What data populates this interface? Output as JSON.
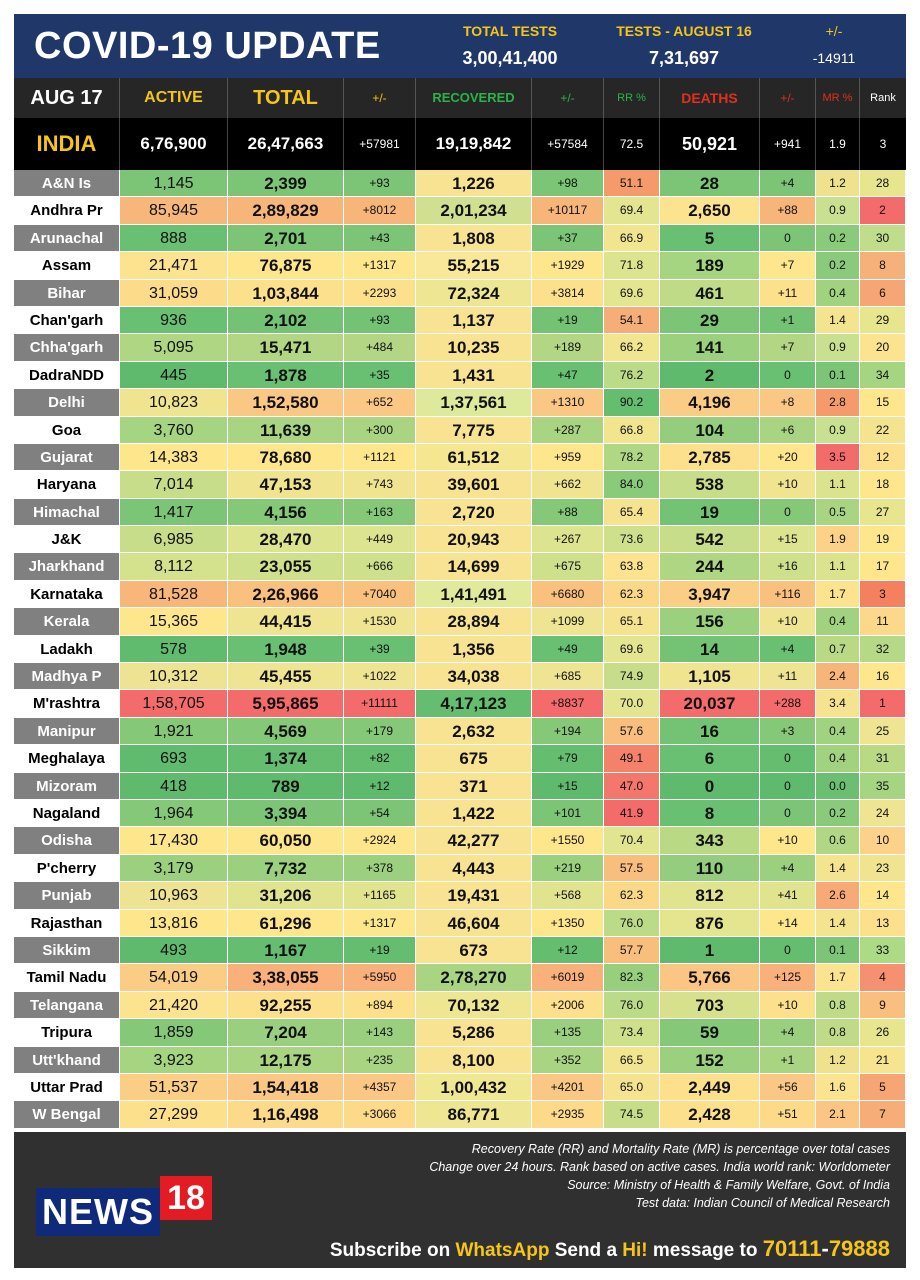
{
  "header": {
    "title": "COVID-19 UPDATE",
    "total_tests_label": "TOTAL TESTS",
    "total_tests_value": "3,00,41,400",
    "tests_day_label": "TESTS - AUGUST 16",
    "tests_day_value": "7,31,697",
    "change_label": "+/-",
    "change_value": "-14911"
  },
  "columns": {
    "date": "AUG 17",
    "active": "ACTIVE",
    "total": "TOTAL",
    "total_change": "+/-",
    "recovered": "RECOVERED",
    "recovered_change": "+/-",
    "rr": "RR %",
    "deaths": "DEATHS",
    "deaths_change": "+/-",
    "mr": "MR %",
    "rank": "Rank"
  },
  "india": {
    "name": "INDIA",
    "active": "6,76,900",
    "total": "26,47,663",
    "total_change": "+57981",
    "recovered": "19,19,842",
    "recovered_change": "+57584",
    "rr": "72.5",
    "deaths": "50,921",
    "deaths_change": "+941",
    "mr": "1.9",
    "rank": "3"
  },
  "rows": [
    {
      "state": "A&N Is",
      "active": "1,145",
      "total": "2,399",
      "tc": "+93",
      "rec": "1,226",
      "rc": "+98",
      "rr": "51.1",
      "deaths": "28",
      "dc": "+4",
      "mr": "1.2",
      "rank": "28",
      "style": "grey",
      "c_active": "#7cc576",
      "c_total": "#7cc576",
      "c_rec": "#f7e392",
      "c_rr": "#f59a6a",
      "c_deaths": "#7cc576",
      "c_mr": "#eee28e",
      "c_rank": "#e7e58e"
    },
    {
      "state": "Andhra Pr",
      "active": "85,945",
      "total": "2,89,829",
      "tc": "+8012",
      "rec": "2,01,234",
      "rc": "+10117",
      "rr": "69.4",
      "deaths": "2,650",
      "dc": "+88",
      "mr": "0.9",
      "rank": "2",
      "style": "white",
      "c_active": "#f7b77a",
      "c_total": "#f7b57a",
      "c_rec": "#cfe091",
      "c_rr": "#e4e590",
      "c_deaths": "#fce38f",
      "c_mr": "#c8e090",
      "c_rank": "#f36b6b"
    },
    {
      "state": "Arunachal",
      "active": "888",
      "total": "2,701",
      "tc": "+43",
      "rec": "1,808",
      "rc": "+37",
      "rr": "66.9",
      "deaths": "5",
      "dc": "0",
      "mr": "0.2",
      "rank": "30",
      "style": "grey",
      "c_active": "#69bf72",
      "c_total": "#7cc576",
      "c_rec": "#f7e392",
      "c_rr": "#f2e58f",
      "c_deaths": "#69bf72",
      "c_mr": "#89ca7b",
      "c_rank": "#c0dd8c"
    },
    {
      "state": "Assam",
      "active": "21,471",
      "total": "76,875",
      "tc": "+1317",
      "rec": "55,215",
      "rc": "+1929",
      "rr": "71.8",
      "deaths": "189",
      "dc": "+7",
      "mr": "0.2",
      "rank": "8",
      "style": "white",
      "c_active": "#fce38f",
      "c_total": "#fde68c",
      "c_rec": "#fae89a",
      "c_rr": "#dde48f",
      "c_deaths": "#a5d580",
      "c_mr": "#89ca7b",
      "c_rank": "#f6b17a"
    },
    {
      "state": "Bihar",
      "active": "31,059",
      "total": "1,03,844",
      "tc": "+2293",
      "rec": "72,324",
      "rc": "+3814",
      "rr": "69.6",
      "deaths": "461",
      "dc": "+11",
      "mr": "0.4",
      "rank": "6",
      "style": "grey",
      "c_active": "#fcdc8b",
      "c_total": "#fde08c",
      "c_rec": "#eee692",
      "c_rr": "#e4e590",
      "c_deaths": "#bfdb88",
      "c_mr": "#a1d27f",
      "c_rank": "#f6a574"
    },
    {
      "state": "Chan'garh",
      "active": "936",
      "total": "2,102",
      "tc": "+93",
      "rec": "1,137",
      "rc": "+19",
      "rr": "54.1",
      "deaths": "29",
      "dc": "+1",
      "mr": "1.4",
      "rank": "29",
      "style": "white",
      "c_active": "#69bf72",
      "c_total": "#74c375",
      "c_rec": "#f7e392",
      "c_rr": "#f6ae78",
      "c_deaths": "#7cc576",
      "c_mr": "#f5e48f",
      "c_rank": "#e7e58e"
    },
    {
      "state": "Chha'garh",
      "active": "5,095",
      "total": "15,471",
      "tc": "+484",
      "rec": "10,235",
      "rc": "+189",
      "rr": "66.2",
      "deaths": "141",
      "dc": "+7",
      "mr": "0.9",
      "rank": "20",
      "style": "grey",
      "c_active": "#afd683",
      "c_total": "#b3d684",
      "c_rec": "#f7e392",
      "c_rr": "#f2e58f",
      "c_deaths": "#9bd07f",
      "c_mr": "#c8e090",
      "c_rank": "#fce38f"
    },
    {
      "state": "DadraNDD",
      "active": "445",
      "total": "1,878",
      "tc": "+35",
      "rec": "1,431",
      "rc": "+47",
      "rr": "76.2",
      "deaths": "2",
      "dc": "0",
      "mr": "0.1",
      "rank": "34",
      "style": "white",
      "c_active": "#5fba6e",
      "c_total": "#69bf72",
      "c_rec": "#f7e392",
      "c_rr": "#bcdb88",
      "c_deaths": "#5fba6e",
      "c_mr": "#7cc576",
      "c_rank": "#a5d580"
    },
    {
      "state": "Delhi",
      "active": "10,823",
      "total": "1,52,580",
      "tc": "+652",
      "rec": "1,37,561",
      "rc": "+1310",
      "rr": "90.2",
      "deaths": "4,196",
      "dc": "+8",
      "mr": "2.8",
      "rank": "15",
      "style": "grey",
      "c_active": "#f0e491",
      "c_total": "#fbc784",
      "c_rec": "#ddea9b",
      "c_rr": "#65bd70",
      "c_deaths": "#fbcc86",
      "c_mr": "#f59a6a",
      "c_rank": "#fde68c"
    },
    {
      "state": "Goa",
      "active": "3,760",
      "total": "11,639",
      "tc": "+300",
      "rec": "7,775",
      "rc": "+287",
      "rr": "66.8",
      "deaths": "104",
      "dc": "+6",
      "mr": "0.9",
      "rank": "22",
      "style": "white",
      "c_active": "#a5d580",
      "c_total": "#a9d582",
      "c_rec": "#f7e392",
      "c_rr": "#f2e58f",
      "c_deaths": "#93cd7d",
      "c_mr": "#c8e090",
      "c_rank": "#f5e48f"
    },
    {
      "state": "Gujarat",
      "active": "14,383",
      "total": "78,680",
      "tc": "+1121",
      "rec": "61,512",
      "rc": "+959",
      "rr": "78.2",
      "deaths": "2,785",
      "dc": "+20",
      "mr": "3.5",
      "rank": "12",
      "style": "grey",
      "c_active": "#fde68c",
      "c_total": "#fde68c",
      "c_rec": "#f5e792",
      "c_rr": "#b0d784",
      "c_deaths": "#fde08c",
      "c_mr": "#f36b6b",
      "c_rank": "#fde08c"
    },
    {
      "state": "Haryana",
      "active": "7,014",
      "total": "47,153",
      "tc": "+743",
      "rec": "39,601",
      "rc": "+662",
      "rr": "84.0",
      "deaths": "538",
      "dc": "+10",
      "mr": "1.1",
      "rank": "18",
      "style": "white",
      "c_active": "#c7dd8a",
      "c_total": "#f0e491",
      "c_rec": "#f7e392",
      "c_rr": "#8acb7b",
      "c_deaths": "#c8dd8a",
      "c_mr": "#dce38e",
      "c_rank": "#fde68c"
    },
    {
      "state": "Himachal",
      "active": "1,417",
      "total": "4,156",
      "tc": "+163",
      "rec": "2,720",
      "rc": "+88",
      "rr": "65.4",
      "deaths": "19",
      "dc": "0",
      "mr": "0.5",
      "rank": "27",
      "style": "grey",
      "c_active": "#7cc576",
      "c_total": "#84c878",
      "c_rec": "#f7e392",
      "c_rr": "#f6e390",
      "c_deaths": "#74c375",
      "c_mr": "#a9d582",
      "c_rank": "#e7e58e"
    },
    {
      "state": "J&K",
      "active": "6,985",
      "total": "28,470",
      "tc": "+449",
      "rec": "20,943",
      "rc": "+267",
      "rr": "73.6",
      "deaths": "542",
      "dc": "+15",
      "mr": "1.9",
      "rank": "19",
      "style": "white",
      "c_active": "#c7dd8a",
      "c_total": "#dde48f",
      "c_rec": "#f7e392",
      "c_rr": "#cfe08d",
      "c_deaths": "#c8dd8a",
      "c_mr": "#fbd287",
      "c_rank": "#fde68c"
    },
    {
      "state": "Jharkhand",
      "active": "8,112",
      "total": "23,055",
      "tc": "+666",
      "rec": "14,699",
      "rc": "+675",
      "rr": "63.8",
      "deaths": "244",
      "dc": "+16",
      "mr": "1.1",
      "rank": "17",
      "style": "grey",
      "c_active": "#d4e18d",
      "c_total": "#cfe08d",
      "c_rec": "#f7e392",
      "c_rr": "#fce38f",
      "c_deaths": "#afd683",
      "c_mr": "#dce38e",
      "c_rank": "#fde68c"
    },
    {
      "state": "Karnataka",
      "active": "81,528",
      "total": "2,26,966",
      "tc": "+7040",
      "rec": "1,41,491",
      "rc": "+6680",
      "rr": "62.3",
      "deaths": "3,947",
      "dc": "+116",
      "mr": "1.7",
      "rank": "3",
      "style": "white",
      "c_active": "#f7b77a",
      "c_total": "#f9c07e",
      "c_rec": "#e0ea9b",
      "c_rr": "#fbd888",
      "c_deaths": "#fbce86",
      "c_mr": "#fce38f",
      "c_rank": "#f5805f"
    },
    {
      "state": "Kerala",
      "active": "15,365",
      "total": "44,415",
      "tc": "+1530",
      "rec": "28,894",
      "rc": "+1099",
      "rr": "65.1",
      "deaths": "156",
      "dc": "+10",
      "mr": "0.4",
      "rank": "11",
      "style": "grey",
      "c_active": "#fde68c",
      "c_total": "#efe491",
      "c_rec": "#f7e392",
      "c_rr": "#f6e390",
      "c_deaths": "#9bd07f",
      "c_mr": "#a1d27f",
      "c_rank": "#fcd88a"
    },
    {
      "state": "Ladakh",
      "active": "578",
      "total": "1,948",
      "tc": "+39",
      "rec": "1,356",
      "rc": "+49",
      "rr": "69.6",
      "deaths": "14",
      "dc": "+4",
      "mr": "0.7",
      "rank": "32",
      "style": "white",
      "c_active": "#61bb6f",
      "c_total": "#69bf72",
      "c_rec": "#f7e392",
      "c_rr": "#e4e590",
      "c_deaths": "#74c375",
      "c_mr": "#b9d985",
      "c_rank": "#b5d986"
    },
    {
      "state": "Madhya P",
      "active": "10,312",
      "total": "45,455",
      "tc": "+1022",
      "rec": "34,038",
      "rc": "+685",
      "rr": "74.9",
      "deaths": "1,105",
      "dc": "+11",
      "mr": "2.4",
      "rank": "16",
      "style": "grey",
      "c_active": "#eee392",
      "c_total": "#efe491",
      "c_rec": "#f7e392",
      "c_rr": "#c7dd8a",
      "c_deaths": "#f1e491",
      "c_mr": "#f8b57a",
      "c_rank": "#fde68c"
    },
    {
      "state": "M'rashtra",
      "active": "1,58,705",
      "total": "5,95,865",
      "tc": "+11111",
      "rec": "4,17,123",
      "rc": "+8837",
      "rr": "70.0",
      "deaths": "20,037",
      "dc": "+288",
      "mr": "3.4",
      "rank": "1",
      "style": "white",
      "c_active": "#f36b6b",
      "c_total": "#f36b6b",
      "c_rec": "#65bd70",
      "c_rr": "#e4e590",
      "c_deaths": "#f36b6b",
      "c_mr": "#f6e390",
      "c_rank": "#f36b6b"
    },
    {
      "state": "Manipur",
      "active": "1,921",
      "total": "4,569",
      "tc": "+179",
      "rec": "2,632",
      "rc": "+194",
      "rr": "57.6",
      "deaths": "16",
      "dc": "+3",
      "mr": "0.4",
      "rank": "25",
      "style": "grey",
      "c_active": "#84c878",
      "c_total": "#84c878",
      "c_rec": "#f7e392",
      "c_rr": "#f8be7e",
      "c_deaths": "#74c375",
      "c_mr": "#a1d27f",
      "c_rank": "#eee491"
    },
    {
      "state": "Meghalaya",
      "active": "693",
      "total": "1,374",
      "tc": "+82",
      "rec": "675",
      "rc": "+79",
      "rr": "49.1",
      "deaths": "6",
      "dc": "0",
      "mr": "0.4",
      "rank": "31",
      "style": "white",
      "c_active": "#61bb6f",
      "c_total": "#65bd70",
      "c_rec": "#f7e392",
      "c_rr": "#f4826a",
      "c_deaths": "#69bf72",
      "c_mr": "#a1d27f",
      "c_rank": "#b9d985"
    },
    {
      "state": "Mizoram",
      "active": "418",
      "total": "789",
      "tc": "+12",
      "rec": "371",
      "rc": "+15",
      "rr": "47.0",
      "deaths": "0",
      "dc": "0",
      "mr": "0.0",
      "rank": "35",
      "style": "grey",
      "c_active": "#5fba6e",
      "c_total": "#5fba6e",
      "c_rec": "#f7e392",
      "c_rr": "#f3776a",
      "c_deaths": "#5fba6e",
      "c_mr": "#6cbf72",
      "c_rank": "#a5d580"
    },
    {
      "state": "Nagaland",
      "active": "1,964",
      "total": "3,394",
      "tc": "+54",
      "rec": "1,422",
      "rc": "+101",
      "rr": "41.9",
      "deaths": "8",
      "dc": "0",
      "mr": "0.2",
      "rank": "24",
      "style": "white",
      "c_active": "#84c878",
      "c_total": "#7cc576",
      "c_rec": "#f7e392",
      "c_rr": "#f36b6b",
      "c_deaths": "#69bf72",
      "c_mr": "#89ca7b",
      "c_rank": "#eee491"
    },
    {
      "state": "Odisha",
      "active": "17,430",
      "total": "60,050",
      "tc": "+2924",
      "rec": "42,277",
      "rc": "+1550",
      "rr": "70.4",
      "deaths": "343",
      "dc": "+10",
      "mr": "0.6",
      "rank": "10",
      "style": "grey",
      "c_active": "#fde68c",
      "c_total": "#fde68c",
      "c_rec": "#f7e392",
      "c_rr": "#e2e590",
      "c_deaths": "#b9d985",
      "c_mr": "#b1d784",
      "c_rank": "#fcd28a"
    },
    {
      "state": "P'cherry",
      "active": "3,179",
      "total": "7,732",
      "tc": "+378",
      "rec": "4,443",
      "rc": "+219",
      "rr": "57.5",
      "deaths": "110",
      "dc": "+4",
      "mr": "1.4",
      "rank": "23",
      "style": "white",
      "c_active": "#9bd07f",
      "c_total": "#9bd07f",
      "c_rec": "#f7e392",
      "c_rr": "#f8be7e",
      "c_deaths": "#93cd7d",
      "c_mr": "#f5e48f",
      "c_rank": "#f1e491"
    },
    {
      "state": "Punjab",
      "active": "10,963",
      "total": "31,206",
      "tc": "+1165",
      "rec": "19,431",
      "rc": "+568",
      "rr": "62.3",
      "deaths": "812",
      "dc": "+41",
      "mr": "2.6",
      "rank": "14",
      "style": "grey",
      "c_active": "#eee392",
      "c_total": "#e1e48f",
      "c_rec": "#f7e392",
      "c_rr": "#fbd888",
      "c_deaths": "#e1e48f",
      "c_mr": "#f8aa76",
      "c_rank": "#fde68c"
    },
    {
      "state": "Rajasthan",
      "active": "13,816",
      "total": "61,296",
      "tc": "+1317",
      "rec": "46,604",
      "rc": "+1350",
      "rr": "76.0",
      "deaths": "876",
      "dc": "+14",
      "mr": "1.4",
      "rank": "13",
      "style": "white",
      "c_active": "#fde68c",
      "c_total": "#fde68c",
      "c_rec": "#f7e392",
      "c_rr": "#bcdb88",
      "c_deaths": "#e5e48f",
      "c_mr": "#f5e48f",
      "c_rank": "#fde08c"
    },
    {
      "state": "Sikkim",
      "active": "493",
      "total": "1,167",
      "tc": "+19",
      "rec": "673",
      "rc": "+12",
      "rr": "57.7",
      "deaths": "1",
      "dc": "0",
      "mr": "0.1",
      "rank": "33",
      "style": "grey",
      "c_active": "#5fba6e",
      "c_total": "#65bd70",
      "c_rec": "#f7e392",
      "c_rr": "#f8be7e",
      "c_deaths": "#5fba6e",
      "c_mr": "#7cc576",
      "c_rank": "#adda84"
    },
    {
      "state": "Tamil Nadu",
      "active": "54,019",
      "total": "3,38,055",
      "tc": "+5950",
      "rec": "2,78,270",
      "rc": "+6019",
      "rr": "82.3",
      "deaths": "5,766",
      "dc": "+125",
      "mr": "1.7",
      "rank": "4",
      "style": "white",
      "c_active": "#fbcc86",
      "c_total": "#f9b07a",
      "c_rec": "#a9d582",
      "c_rr": "#98cf7e",
      "c_deaths": "#fbc584",
      "c_mr": "#fce38f",
      "c_rank": "#f59070"
    },
    {
      "state": "Telangana",
      "active": "21,420",
      "total": "92,255",
      "tc": "+894",
      "rec": "70,132",
      "rc": "+2006",
      "rr": "76.0",
      "deaths": "703",
      "dc": "+10",
      "mr": "0.8",
      "rank": "9",
      "style": "grey",
      "c_active": "#fce38f",
      "c_total": "#fde08c",
      "c_rec": "#eee692",
      "c_rr": "#bcdb88",
      "c_deaths": "#d7e18d",
      "c_mr": "#bfdb88",
      "c_rank": "#f8bf7e"
    },
    {
      "state": "Tripura",
      "active": "1,859",
      "total": "7,204",
      "tc": "+143",
      "rec": "5,286",
      "rc": "+135",
      "rr": "73.4",
      "deaths": "59",
      "dc": "+4",
      "mr": "0.8",
      "rank": "26",
      "style": "white",
      "c_active": "#84c878",
      "c_total": "#99cf7f",
      "c_rec": "#f7e392",
      "c_rr": "#cfe08d",
      "c_deaths": "#84c878",
      "c_mr": "#bfdb88",
      "c_rank": "#e7e58e"
    },
    {
      "state": "Utt'khand",
      "active": "3,923",
      "total": "12,175",
      "tc": "+235",
      "rec": "8,100",
      "rc": "+352",
      "rr": "66.5",
      "deaths": "152",
      "dc": "+1",
      "mr": "1.2",
      "rank": "21",
      "style": "grey",
      "c_active": "#a5d580",
      "c_total": "#a9d582",
      "c_rec": "#f7e392",
      "c_rr": "#f2e58f",
      "c_deaths": "#9bd07f",
      "c_mr": "#eee28e",
      "c_rank": "#f7e48f"
    },
    {
      "state": "Uttar Prad",
      "active": "51,537",
      "total": "1,54,418",
      "tc": "+4357",
      "rec": "1,00,432",
      "rc": "+4201",
      "rr": "65.0",
      "deaths": "2,449",
      "dc": "+56",
      "mr": "1.6",
      "rank": "5",
      "style": "white",
      "c_active": "#fbce86",
      "c_total": "#fbc784",
      "c_rec": "#f0e793",
      "c_rr": "#f6e390",
      "c_deaths": "#fde08c",
      "c_mr": "#fbe48f",
      "c_rank": "#f6a574"
    },
    {
      "state": "W Bengal",
      "active": "27,299",
      "total": "1,16,498",
      "tc": "+3066",
      "rec": "86,771",
      "rc": "+2935",
      "rr": "74.5",
      "deaths": "2,428",
      "dc": "+51",
      "mr": "2.1",
      "rank": "7",
      "style": "grey",
      "c_active": "#fce08c",
      "c_total": "#fdd98a",
      "c_rec": "#eee692",
      "c_rr": "#c7dd8a",
      "c_deaths": "#fde08c",
      "c_mr": "#fbc584",
      "c_rank": "#f6ad78"
    }
  ],
  "footer": {
    "note1": "Recovery Rate (RR) and Mortality Rate (MR) is percentage over total cases",
    "note2": "Change over 24 hours. Rank based on active cases. India world rank: Worldometer",
    "note3": "Source: Ministry of Health & Family Welfare, Govt. of India",
    "note4": "Test data: Indian Council of Medical Research",
    "logo_text": "NEWS",
    "logo_num": "18",
    "sub_pre": "Subscribe on ",
    "sub_whatsapp": "WhatsApp",
    "sub_mid": " Send a ",
    "sub_hi": "Hi!",
    "sub_post": " message to ",
    "sub_phone_a": "70111",
    "sub_phone_dash": "-",
    "sub_phone_b": "79888"
  },
  "colors": {
    "header_bg": "#20376a",
    "accent_yellow": "#f5c518",
    "recovered_green": "#2bb34a",
    "deaths_red": "#e0301e",
    "grey_state": "#808080"
  }
}
